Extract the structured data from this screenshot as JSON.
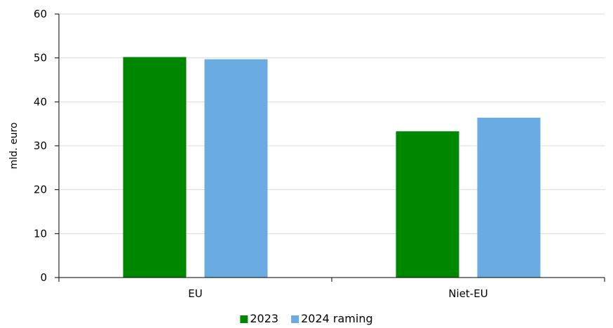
{
  "chart_data": {
    "type": "bar",
    "categories": [
      "EU",
      "Niet-EU"
    ],
    "series": [
      {
        "name": "2023",
        "values": [
          50.2,
          33.3
        ],
        "color": "#008700"
      },
      {
        "name": "2024 raming",
        "values": [
          49.7,
          36.4
        ],
        "color": "#6aace2"
      }
    ],
    "ylabel": "mld. euro",
    "xlabel": "",
    "ylim": [
      0,
      60
    ],
    "yticks": [
      0,
      10,
      20,
      30,
      40,
      50,
      60
    ],
    "grid": true,
    "legend_position": "bottom"
  }
}
